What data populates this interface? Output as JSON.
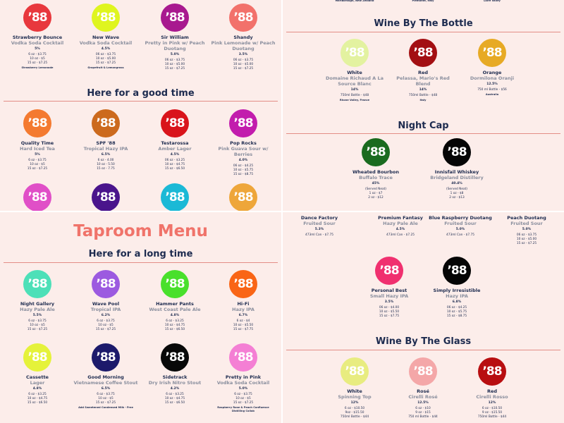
{
  "logo_text": "'88",
  "colors": {
    "heading": "#1d2b4f",
    "subtitle": "#8a8f9e",
    "rule": "#e38d86",
    "title": "#f0736a",
    "background": "#fcedea"
  },
  "top_left": {
    "heading": "Here for a good time",
    "row1": [
      {
        "name": "Strawberry Bounce",
        "style": "Vodka Soda Cocktail",
        "abv": "5%",
        "prices": [
          "6 oz - $3.75",
          "10 oz - $5",
          "15 oz - $7.25"
        ],
        "note": "Strawberry Lemonade",
        "color": "#e8383d"
      },
      {
        "name": "New Wave",
        "style": "Vodka Soda Cocktail",
        "abv": "4.5%",
        "prices": [
          "06 oz - $3.75",
          "10 oz - $5.00",
          "15 oz - $7.25"
        ],
        "note": "Grapefruit & Lemongrass",
        "color": "#dff51f"
      },
      {
        "name": "Sir William",
        "style": "Pretty in Pink w/ Peach Duotang",
        "abv": "5.0%",
        "prices": [
          "06 oz - $3.75",
          "10 oz - $5.00",
          "15 oz - $7.25"
        ],
        "color": "#a8198f"
      },
      {
        "name": "Shandy",
        "style": "Pink Lemonade w/ Peach Duotang",
        "abv": "3.5%",
        "prices": [
          "06 oz - $3.75",
          "10 oz - $5.00",
          "15 oz - $7.25"
        ],
        "color": "#f2716b"
      }
    ],
    "row2": [
      {
        "name": "Quality Time",
        "style": "Hard Iced Tea",
        "abv": "5%",
        "prices": [
          "6 oz - $3.75",
          "10 oz - $5",
          "15 oz - $7.25"
        ],
        "color": "#f47a30"
      },
      {
        "name": "SPF '88",
        "style": "Tropical Hazy IPA",
        "abv": "6.5%",
        "prices": [
          "6 oz - 4.00",
          "10 oz - 5.50",
          "15 oz - 7.75"
        ],
        "color": "#cc6a1d"
      },
      {
        "name": "Testarossa",
        "style": "Amber Lager",
        "abv": "4.5%",
        "prices": [
          "06 oz - $3.25",
          "10 oz - $4.75",
          "15 oz - $6.50"
        ],
        "color": "#d9141b"
      },
      {
        "name": "Pop Rocks",
        "style": "Pink Guava Sour w/ Berries",
        "abv": "4.0%",
        "prices": [
          "06 oz - $4.25",
          "10 oz - $5.75",
          "15 oz - $8.75"
        ],
        "color": "#c21cad"
      }
    ],
    "row3": [
      {
        "color": "#e04fc7"
      },
      {
        "color": "#4a148c"
      },
      {
        "color": "#1bb9d6"
      },
      {
        "color": "#eea63a"
      }
    ]
  },
  "bottom_left": {
    "title": "Taproom Menu",
    "heading": "Here for a long time",
    "row1": [
      {
        "name": "Night Gallery",
        "style": "Hazy Pale Ale",
        "abv": "5.5%",
        "prices": [
          "6 oz - $3.75",
          "10 oz - $5",
          "15 oz - $7.25"
        ],
        "color": "#4de0b8"
      },
      {
        "name": "Wave Pool",
        "style": "Tropical IPA",
        "abv": "6.2%",
        "prices": [
          "6 oz - $3.75",
          "10 oz - $5",
          "15 oz - $7.25"
        ],
        "color": "#9c5ae0"
      },
      {
        "name": "Hammer Pants",
        "style": "West Coast Pale Ale",
        "abv": "4.8%",
        "prices": [
          "6 oz - $3.25",
          "10 oz - $4.75",
          "15 oz - $6.50"
        ],
        "color": "#49e02c"
      },
      {
        "name": "Hi-Fi",
        "style": "Hazy IPA",
        "abv": "6.7%",
        "prices": [
          "6 oz - $4",
          "10 oz - $5.50",
          "15 oz - $7.75"
        ],
        "color": "#f96516"
      }
    ],
    "row2": [
      {
        "name": "Cassette",
        "style": "Lager",
        "abv": "4.8%",
        "prices": [
          "6 oz - $3.25",
          "10 oz - $4.75",
          "15 oz - $6.50"
        ],
        "color": "#e5f23a"
      },
      {
        "name": "Good Morning",
        "style": "Vietnamese Coffee Stout",
        "abv": "6.5%",
        "prices": [
          "6 oz - $3.75",
          "10 oz - $5",
          "15 oz - $7.25"
        ],
        "note": "Add Sweetened Condensed Milk - Free",
        "color": "#1c1a6b"
      },
      {
        "name": "Sidetrack",
        "style": "Dry Irish Nitro Stout",
        "abv": "4.2%",
        "prices": [
          "6 oz - $3.25",
          "10 oz - $4.75",
          "15 oz - $6.50"
        ],
        "color": "#080808"
      },
      {
        "name": "Pretty in Pink",
        "style": "Vodka Soda Cocktail",
        "abv": "5.0%",
        "prices": [
          "6 oz - $3.75",
          "10 oz - $5",
          "15 oz - $7.25"
        ],
        "note": "Raspberry Rose & Peach Confluence Distilling Collab",
        "color": "#f47fd4"
      }
    ]
  },
  "top_right": {
    "top_notes": [
      "Marlborough, New Zealand",
      "Piemonte, Italy",
      "Loire Valley"
    ],
    "wine_bottle": {
      "heading": "Wine By The Bottle",
      "items": [
        {
          "name": "White",
          "style": "Domaine Richaud A La Source Blanc",
          "abv": "14%",
          "prices": [
            "750ml Bottle - $48"
          ],
          "note": "Rhone Valley, France",
          "color": "#e3f2a0"
        },
        {
          "name": "Red",
          "style": "Pelassa, Mario's Red Blend",
          "abv": "14%",
          "prices": [
            "750ml Bottle - $48"
          ],
          "note": "Italy",
          "color": "#a30f12"
        },
        {
          "name": "Orange",
          "style": "Dormilona Oranji",
          "abv": "12.5%",
          "prices": [
            "750 ml Bottle - $56"
          ],
          "note": "Australia",
          "color": "#e7aa25"
        }
      ]
    },
    "night_cap": {
      "heading": "Night Cap",
      "items": [
        {
          "name": "Wheated Bourbon",
          "style": "Buffalo Trace",
          "abv": "45%",
          "prices": [
            "(Served Neat)",
            "1 oz - $7",
            "2 oz - $12"
          ],
          "color": "#1a6b1f"
        },
        {
          "name": "Innisfail Whiskey",
          "style": "Bridgeland Distillery",
          "abv": "40.4%",
          "prices": [
            "(Served Neat)",
            "1 oz - $8",
            "2 oz - $13"
          ],
          "color": "#050505"
        }
      ]
    }
  },
  "bottom_right": {
    "row1": [
      {
        "name": "Dance Factory",
        "style": "Fruited Sour",
        "abv": "5.3%",
        "prices": [
          "473ml Can - $7.75"
        ]
      },
      {
        "name": "Premium Fantasy",
        "style": "Hazy Pale Ale",
        "abv": "4.5%",
        "prices": [
          "473ml Can - $7.25"
        ]
      },
      {
        "name": "Blue Raspberry Duotang",
        "style": "Fruited Sour",
        "abv": "5.0%",
        "prices": [
          "473ml Can - $7.75"
        ]
      },
      {
        "name": "Peach Duotang",
        "style": "Fruited Sour",
        "abv": "5.0%",
        "prices": [
          "06 oz - $3.75",
          "10 oz - $5.00",
          "15 oz - $7.25"
        ]
      }
    ],
    "row2": [
      {
        "name": "Personal Best",
        "style": "Small Hazy IPA",
        "abv": "3.5%",
        "prices": [
          "06 oz - $4.00",
          "10 oz - $5.50",
          "15 oz - $7.75"
        ],
        "color": "#f0306f"
      },
      {
        "name": "Simply Irresistible",
        "style": "Hazy IPA",
        "abv": "6.8%",
        "prices": [
          "06 oz - $4.25",
          "10 oz - $5.75",
          "15 oz - $8.75"
        ],
        "color": "#050505"
      }
    ],
    "wine_glass": {
      "heading": "Wine By The Glass",
      "items": [
        {
          "name": "White",
          "style": "Spinning Top",
          "abv": "12%",
          "prices": [
            "6 oz - $10.50",
            "9oz - $15.50",
            "750ml Bottle - $44"
          ],
          "color": "#e8ec80"
        },
        {
          "name": "Rosé",
          "style": "Cirelli Rosé",
          "abv": "12.5%",
          "prices": [
            "6 oz - $10",
            "9 oz - $15",
            "750 ml Bottle - $44"
          ],
          "color": "#f4a7a8"
        },
        {
          "name": "Red",
          "style": "Cirelli Rosso",
          "abv": "12%",
          "prices": [
            "6 oz - $10.50",
            "9 oz - $15.50",
            "750ml Bottle - $44"
          ],
          "color": "#b80e10"
        }
      ]
    }
  }
}
